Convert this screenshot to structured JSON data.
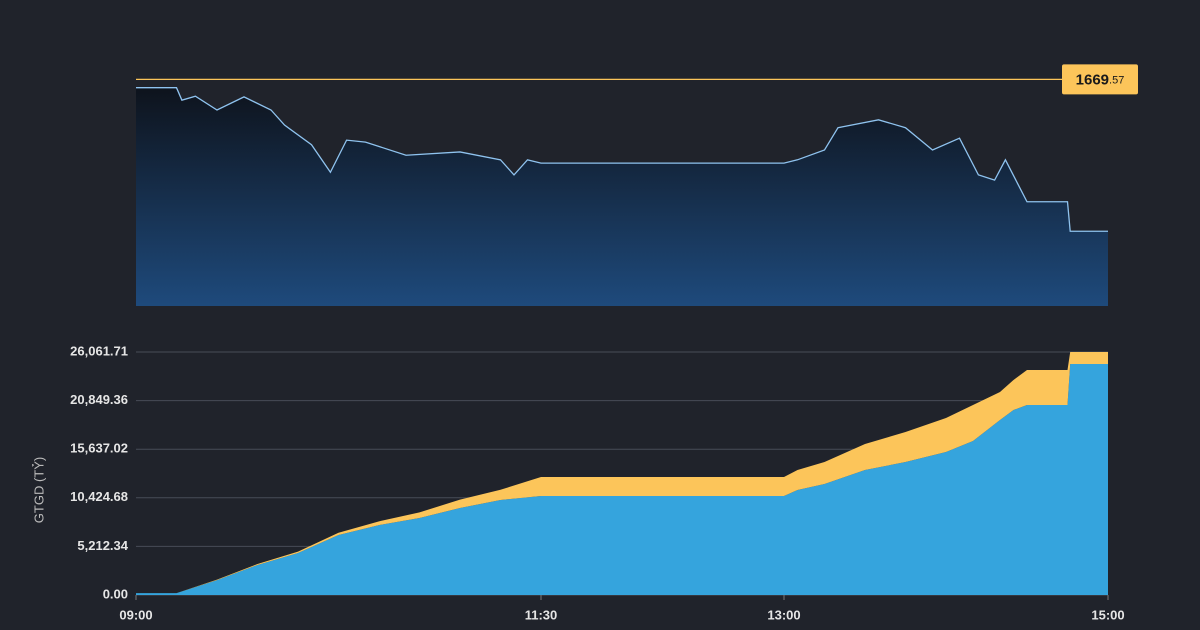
{
  "chart_data": [
    {
      "type": "price_area",
      "x": [
        "09:00",
        "09:15",
        "09:17",
        "09:22",
        "09:30",
        "09:40",
        "09:50",
        "09:55",
        "10:05",
        "10:12",
        "10:18",
        "10:25",
        "10:40",
        "11:00",
        "11:15",
        "11:20",
        "11:25",
        "11:30",
        "13:00",
        "13:05",
        "13:15",
        "13:20",
        "13:35",
        "13:45",
        "13:55",
        "14:05",
        "14:12",
        "14:18",
        "14:22",
        "14:30",
        "14:45",
        "14:46",
        "15:00"
      ],
      "values": [
        1668.3,
        1668.3,
        1666.4,
        1667.0,
        1664.9,
        1666.9,
        1664.9,
        1662.6,
        1659.6,
        1655.4,
        1660.3,
        1660.0,
        1658.0,
        1658.5,
        1657.3,
        1655.0,
        1657.3,
        1656.8,
        1656.8,
        1657.3,
        1658.8,
        1662.2,
        1663.4,
        1662.2,
        1658.8,
        1660.6,
        1655.0,
        1654.2,
        1657.3,
        1650.9,
        1650.9,
        1646.4,
        1646.4
      ],
      "color": "#8fc3ef",
      "xlim": [
        "09:00",
        "15:00"
      ],
      "ylim": [
        1635,
        1671
      ],
      "reference_line": {
        "value": 1669.57,
        "label": "1669.57",
        "color": "#fcc55a"
      }
    },
    {
      "type": "stacked_area",
      "x": [
        "09:00",
        "09:15",
        "09:30",
        "09:45",
        "10:00",
        "10:15",
        "10:30",
        "10:45",
        "11:00",
        "11:15",
        "11:30",
        "13:00",
        "13:05",
        "13:15",
        "13:30",
        "13:45",
        "14:00",
        "14:10",
        "14:20",
        "14:25",
        "14:30",
        "14:45",
        "14:46",
        "15:00"
      ],
      "series": [
        {
          "color": "#35a4dd",
          "values": [
            200,
            200,
            1600,
            3220,
            4500,
            6430,
            7500,
            8260,
            9330,
            10190,
            10620,
            10620,
            11260,
            11900,
            13400,
            14260,
            15340,
            16520,
            18770,
            19840,
            20380,
            20380,
            24770,
            24770
          ]
        },
        {
          "color": "#fcc55a",
          "values": [
            0,
            0,
            50,
            100,
            150,
            250,
            400,
            600,
            900,
            1100,
            2030,
            2030,
            2140,
            2360,
            2790,
            3220,
            3640,
            3860,
            3000,
            3220,
            3750,
            3750,
            1290,
            1290
          ]
        }
      ],
      "y_label": "GTGD (TỶ)",
      "xlim": [
        "09:00",
        "15:00"
      ],
      "xticks": [
        "09:00",
        "11:30",
        "13:00",
        "15:00"
      ],
      "ylim": [
        0,
        26061.71
      ],
      "yticks": [
        {
          "value": 0,
          "label": "0.00"
        },
        {
          "value": 5212.34,
          "label": "5,212.34"
        },
        {
          "value": 10424.68,
          "label": "10,424.68"
        },
        {
          "value": 15637.02,
          "label": "15,637.02"
        },
        {
          "value": 20849.36,
          "label": "20,849.36"
        },
        {
          "value": 26061.71,
          "label": "26,061.71"
        }
      ],
      "grid": true
    }
  ]
}
